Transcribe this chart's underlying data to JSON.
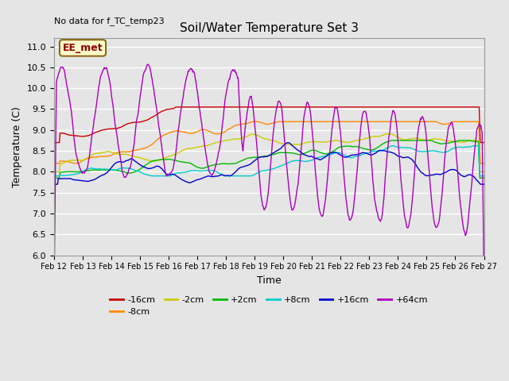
{
  "title": "Soil/Water Temperature Set 3",
  "xlabel": "Time",
  "ylabel": "Temperature (C)",
  "no_data_text": "No data for f_TC_temp23",
  "annotation_text": "EE_met",
  "ylim": [
    6.0,
    11.2
  ],
  "yticks": [
    6.0,
    6.5,
    7.0,
    7.5,
    8.0,
    8.5,
    9.0,
    9.5,
    10.0,
    10.5,
    11.0
  ],
  "xtick_labels": [
    "Feb 12",
    "Feb 13",
    "Feb 14",
    "Feb 15",
    "Feb 16",
    "Feb 17",
    "Feb 18",
    "Feb 19",
    "Feb 20",
    "Feb 21",
    "Feb 22",
    "Feb 23",
    "Feb 24",
    "Feb 25",
    "Feb 26",
    "Feb 27"
  ],
  "bg_color": "#e5e5e5",
  "plot_bg_color": "#e5e5e5",
  "series_colors": {
    "-16cm": "#cc0000",
    "-8cm": "#ff8800",
    "-2cm": "#cccc00",
    "+2cm": "#00bb00",
    "+8cm": "#00cccc",
    "+16cm": "#0000cc",
    "+64cm": "#aa00bb"
  },
  "legend_labels": [
    "-16cm",
    "-8cm",
    "-2cm",
    "+2cm",
    "+8cm",
    "+16cm",
    "+64cm"
  ]
}
